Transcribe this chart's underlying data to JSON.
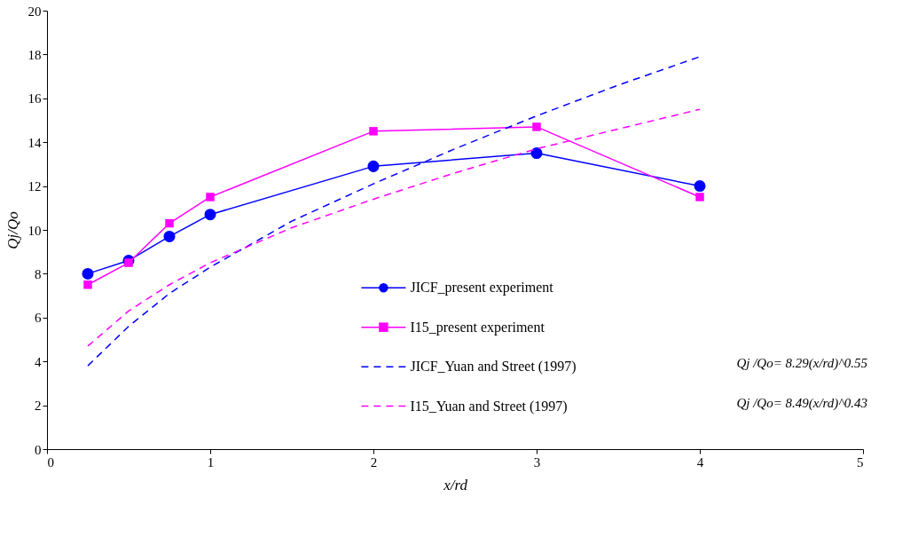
{
  "chart_data": {
    "type": "line",
    "xlabel": "x/rd",
    "ylabel": "Qj/Qo",
    "xlim": [
      0,
      5
    ],
    "xticks": [
      0,
      1,
      2,
      3,
      4,
      5
    ],
    "ylim": [
      0,
      20
    ],
    "yticks": [
      0,
      2,
      4,
      6,
      8,
      10,
      12,
      14,
      16,
      18,
      20
    ],
    "grid": false,
    "legend": "right",
    "series": [
      {
        "name": "JICF_present  experiment",
        "color": "#0000ff",
        "marker": "circle",
        "line_style": "solid",
        "x": [
          0.25,
          0.5,
          0.75,
          1,
          2,
          3,
          4
        ],
        "values": [
          8.0,
          8.6,
          9.7,
          10.7,
          12.9,
          13.5,
          12.0
        ]
      },
      {
        "name": "I15_present  experiment",
        "color": "#ff00ff",
        "marker": "square",
        "line_style": "solid",
        "x": [
          0.25,
          0.5,
          0.75,
          1,
          2,
          3,
          4
        ],
        "values": [
          7.5,
          8.5,
          10.3,
          11.5,
          14.5,
          14.7,
          11.5
        ]
      },
      {
        "name": "JICF_Yuan and Street (1997)",
        "color": "#0000ff",
        "marker": "none",
        "line_style": "dashed",
        "x": [
          0.25,
          0.5,
          0.75,
          1,
          1.5,
          2,
          2.5,
          3,
          3.5,
          4
        ],
        "values": [
          3.8,
          5.6,
          7.1,
          8.3,
          10.4,
          12.1,
          13.7,
          15.2,
          16.6,
          17.9
        ]
      },
      {
        "name": "I15_Yuan and Street (1997)",
        "color": "#ff00ff",
        "marker": "none",
        "line_style": "dashed",
        "x": [
          0.25,
          0.5,
          0.75,
          1,
          1.5,
          2,
          2.5,
          3,
          3.5,
          4
        ],
        "values": [
          4.7,
          6.3,
          7.5,
          8.5,
          10.1,
          11.4,
          12.6,
          13.7,
          14.6,
          15.5
        ]
      }
    ],
    "annotations": [
      "Qj /Qo= 8.29(x/rd)^0.55",
      "Qj /Qo= 8.49(x/rd)^0.43"
    ]
  }
}
